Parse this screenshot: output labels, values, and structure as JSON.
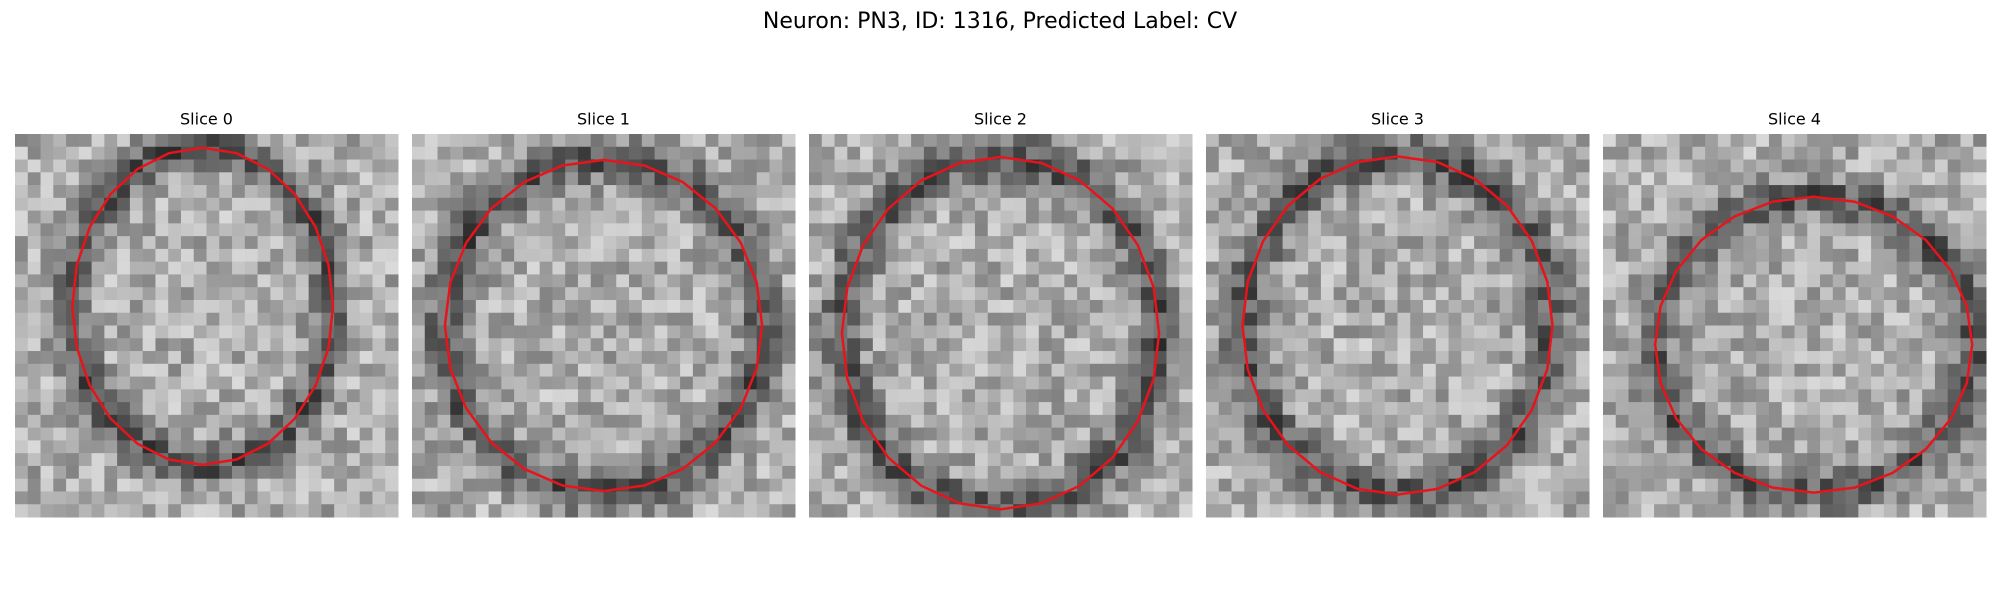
{
  "header": {
    "title": "Neuron: PN3, ID: 1316, Predicted Label: CV"
  },
  "slices": [
    {
      "title": "Slice 0"
    },
    {
      "title": "Slice 1"
    },
    {
      "title": "Slice 2"
    },
    {
      "title": "Slice 3"
    },
    {
      "title": "Slice 4"
    }
  ]
}
